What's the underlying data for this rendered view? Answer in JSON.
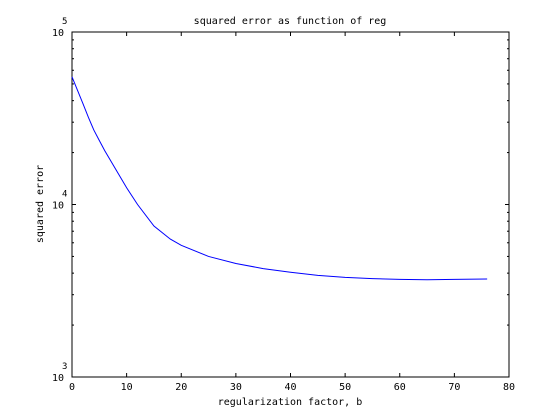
{
  "chart_data": {
    "type": "line",
    "title": "squared error as function of reg",
    "xlabel": "regularization factor, b",
    "ylabel": "squared error",
    "xlim": [
      0,
      80
    ],
    "ylim": [
      1000,
      100000
    ],
    "yscale": "log",
    "grid": false,
    "x_ticks": [
      "0",
      "10",
      "20",
      "30",
      "40",
      "50",
      "60",
      "70",
      "80"
    ],
    "y_ticks": [
      {
        "base": "10",
        "exp": "3"
      },
      {
        "base": "10",
        "exp": "4"
      },
      {
        "base": "10",
        "exp": "5"
      }
    ],
    "series": [
      {
        "color": "#0000ff",
        "x": [
          0,
          1,
          2,
          3,
          4,
          5,
          6,
          8,
          10,
          12,
          15,
          18,
          20,
          25,
          30,
          35,
          40,
          45,
          50,
          55,
          60,
          65,
          70,
          76
        ],
        "y": [
          55000,
          46000,
          38500,
          32000,
          27000,
          23500,
          20500,
          16000,
          12500,
          10000,
          7500,
          6300,
          5800,
          5000,
          4550,
          4250,
          4050,
          3880,
          3780,
          3720,
          3680,
          3660,
          3680,
          3700
        ]
      }
    ]
  }
}
